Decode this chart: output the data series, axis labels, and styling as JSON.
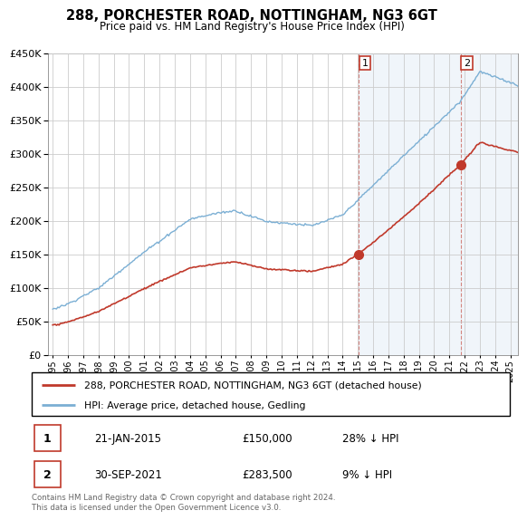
{
  "title": "288, PORCHESTER ROAD, NOTTINGHAM, NG3 6GT",
  "subtitle": "Price paid vs. HM Land Registry's House Price Index (HPI)",
  "legend_house": "288, PORCHESTER ROAD, NOTTINGHAM, NG3 6GT (detached house)",
  "legend_hpi": "HPI: Average price, detached house, Gedling",
  "footnote": "Contains HM Land Registry data © Crown copyright and database right 2024.\nThis data is licensed under the Open Government Licence v3.0.",
  "transaction1_date": "21-JAN-2015",
  "transaction1_price": "£150,000",
  "transaction1_hpi": "28% ↓ HPI",
  "transaction2_date": "30-SEP-2021",
  "transaction2_price": "£283,500",
  "transaction2_hpi": "9% ↓ HPI",
  "hpi_color": "#7bafd4",
  "hpi_fill_color": "#deeaf4",
  "house_color": "#c0392b",
  "background_color": "#ffffff",
  "grid_color": "#cccccc",
  "shade_color": "#deeaf4",
  "ylim_min": 0,
  "ylim_max": 450000,
  "xlim_min": 1994.7,
  "xlim_max": 2025.5,
  "t1_year": 2015.055,
  "t2_year": 2021.747,
  "price1": 150000,
  "price2": 283500
}
